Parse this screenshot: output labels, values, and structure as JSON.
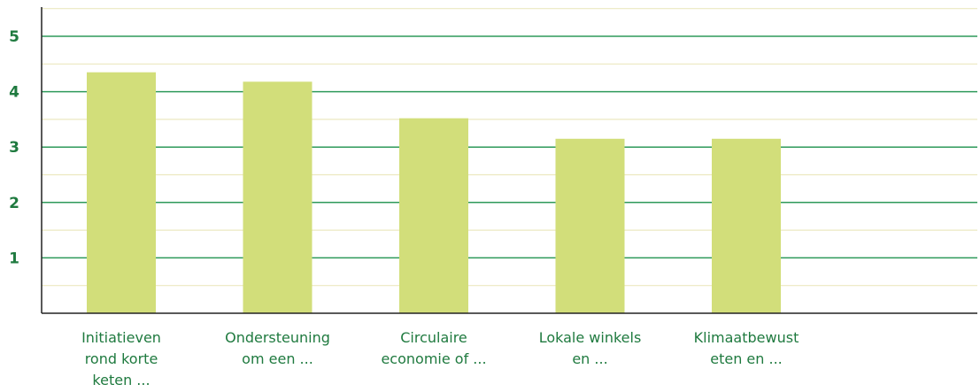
{
  "chart_data": {
    "type": "bar",
    "categories": [
      [
        "Initiatieven",
        "rond korte",
        "keten ..."
      ],
      [
        "Ondersteuning",
        "om een ..."
      ],
      [
        "Circulaire",
        "economie of ..."
      ],
      [
        "Lokale winkels",
        "en ..."
      ],
      [
        "Klimaatbewust",
        "eten en ..."
      ]
    ],
    "values": [
      4.35,
      4.18,
      3.52,
      3.15,
      3.15
    ],
    "y_ticks": [
      "1",
      "2",
      "3",
      "4",
      "5"
    ],
    "ylim": [
      0,
      5.5
    ],
    "grid": true,
    "colors": {
      "bar": "#d2de7a",
      "major_grid": "#2e9a5a",
      "minor_grid": "#ece8c0",
      "axis": "#222222",
      "label": "#1f7a3f"
    }
  }
}
